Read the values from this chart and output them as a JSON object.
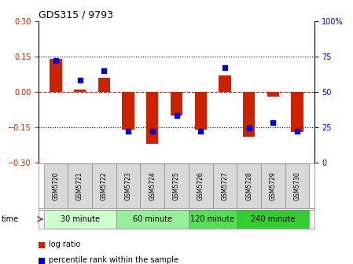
{
  "title": "GDS315 / 9793",
  "samples": [
    "GSM5720",
    "GSM5721",
    "GSM5722",
    "GSM5723",
    "GSM5724",
    "GSM5725",
    "GSM5726",
    "GSM5727",
    "GSM5728",
    "GSM5729",
    "GSM5730"
  ],
  "log_ratio": [
    0.14,
    0.01,
    0.06,
    -0.16,
    -0.22,
    -0.1,
    -0.16,
    0.07,
    -0.19,
    -0.02,
    -0.17
  ],
  "percentile": [
    72,
    58,
    65,
    22,
    22,
    33,
    22,
    67,
    24,
    28,
    22
  ],
  "ylim": [
    -0.3,
    0.3
  ],
  "yticks_left": [
    -0.3,
    -0.15,
    0,
    0.15,
    0.3
  ],
  "yticks_right": [
    0,
    25,
    50,
    75,
    100
  ],
  "bar_color": "#cc2200",
  "dot_color": "#0000cc",
  "zero_line_color": "#cc2200",
  "grid_color": "#000000",
  "groups": [
    {
      "label": "30 minute",
      "start": 0,
      "end": 3,
      "color": "#ccffcc"
    },
    {
      "label": "60 minute",
      "start": 3,
      "end": 6,
      "color": "#99ee99"
    },
    {
      "label": "120 minute",
      "start": 6,
      "end": 8,
      "color": "#55dd55"
    },
    {
      "label": "240 minute",
      "start": 8,
      "end": 11,
      "color": "#33cc33"
    }
  ],
  "xlabel_time": "time",
  "legend_log_ratio": "log ratio",
  "legend_percentile": "percentile rank within the sample",
  "bar_width": 0.5,
  "dot_size": 18,
  "sample_bg": "#d8d8d8",
  "title_fontsize": 9,
  "tick_fontsize": 7,
  "group_fontsize": 7,
  "legend_fontsize": 7
}
